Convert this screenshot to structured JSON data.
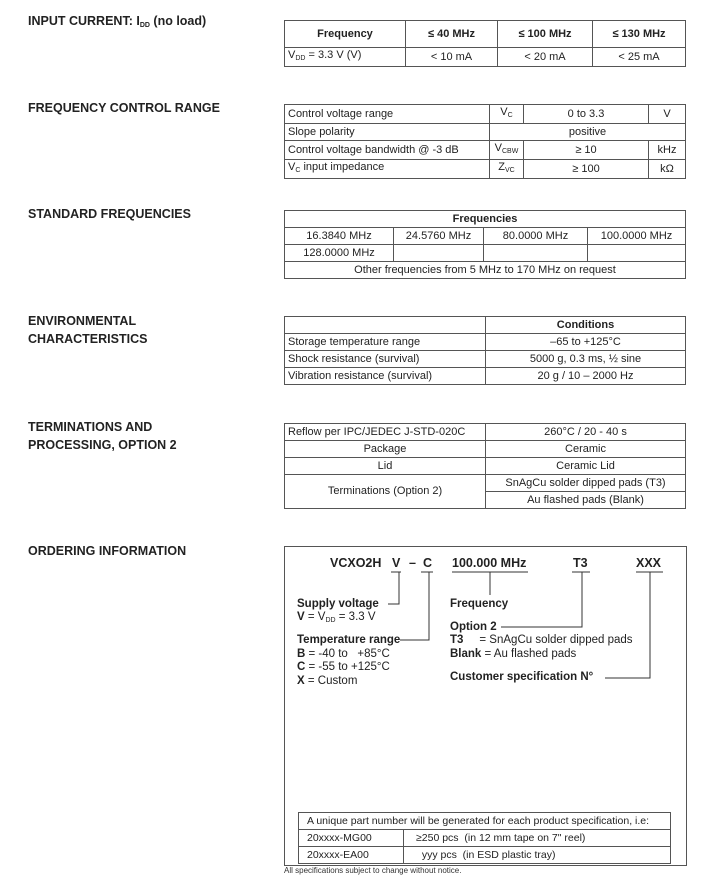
{
  "input_current": {
    "label_pre": "INPUT CURRENT: I",
    "label_sub": "DD",
    "label_post": " (no load)",
    "headers": [
      "Frequency",
      "≤ 40 MHz",
      "≤ 100 MHz",
      "≤ 130 MHz"
    ],
    "row_label_pre": "V",
    "row_label_sub": "DD",
    "row_label_post": " = 3.3 V (V)",
    "values": [
      "< 10 mA",
      "< 20 mA",
      "< 25 mA"
    ]
  },
  "freq_control": {
    "label": "FREQUENCY CONTROL RANGE",
    "r1": [
      "Control voltage range",
      "V",
      "C",
      "0 to 3.3",
      "V"
    ],
    "r2": [
      "Slope polarity",
      "positive"
    ],
    "r3": [
      "Control voltage bandwidth @ -3 dB",
      "V",
      "CBW",
      "≥ 10",
      "kHz"
    ],
    "r4": [
      "V",
      "C",
      " input impedance",
      "Z",
      "VC",
      "≥ 100",
      "kΩ"
    ]
  },
  "standard": {
    "label": "STANDARD FREQUENCIES",
    "header": "Frequencies",
    "row1": [
      "16.3840 MHz",
      "24.5760 MHz",
      "80.0000 MHz",
      "100.0000 MHz"
    ],
    "row2": [
      "128.0000 MHz"
    ],
    "note": "Other frequencies from 5 MHz to 170 MHz on request"
  },
  "environmental": {
    "label1": "ENVIRONMENTAL",
    "label2": "CHARACTERISTICS",
    "header": "Conditions",
    "rows": [
      [
        "Storage temperature range",
        "–65 to +125°C"
      ],
      [
        "Shock resistance (survival)",
        "5000 g, 0.3 ms, ½ sine"
      ],
      [
        "Vibration resistance (survival)",
        "20 g / 10 – 2000 Hz"
      ]
    ]
  },
  "terminations": {
    "label1": "TERMINATIONS AND",
    "label2": "PROCESSING, OPTION 2",
    "rows": [
      [
        "Reflow per IPC/JEDEC J-STD-020C",
        "260°C / 20 - 40 s"
      ],
      [
        "Package",
        "Ceramic"
      ],
      [
        "Lid",
        "Ceramic Lid"
      ]
    ],
    "term_label": "Terminations (Option 2)",
    "term_values": [
      "SnAgCu solder dipped pads (T3)",
      "Au flashed pads (Blank)"
    ]
  },
  "ordering": {
    "label": "ORDERING INFORMATION",
    "code": {
      "model": "VCXO2H",
      "v": "V",
      "dash": "–",
      "c": "C",
      "freq": "100.000 MHz",
      "opt": "T3",
      "cust": "XXX"
    },
    "supply_title": "Supply voltage",
    "supply_v": "V",
    "supply_pre": " = V",
    "supply_sub": "DD",
    "supply_post": " = 3.3 V",
    "temp_title": "Temperature range",
    "temp": [
      [
        "B",
        " = -40 to   +85°C"
      ],
      [
        "C",
        " = -55 to +125°C"
      ],
      [
        "X",
        " = Custom"
      ]
    ],
    "freq_title": "Frequency",
    "opt_title": "Option 2",
    "opts": [
      [
        "T3",
        "     = SnAgCu solder dipped pads"
      ],
      [
        "Blank",
        " = Au flashed pads"
      ]
    ],
    "cust_title": "Customer specification N°",
    "pn_note": "A unique part number will be generated for each product specification, i.e:",
    "pn_rows": [
      [
        "20xxxx-MG00",
        "≥250 pcs  (in 12 mm tape on 7\" reel)"
      ],
      [
        "20xxxx-EA00",
        "  yyy pcs  (in ESD plastic tray)"
      ]
    ]
  },
  "footer": "All specifications subject to change without notice."
}
